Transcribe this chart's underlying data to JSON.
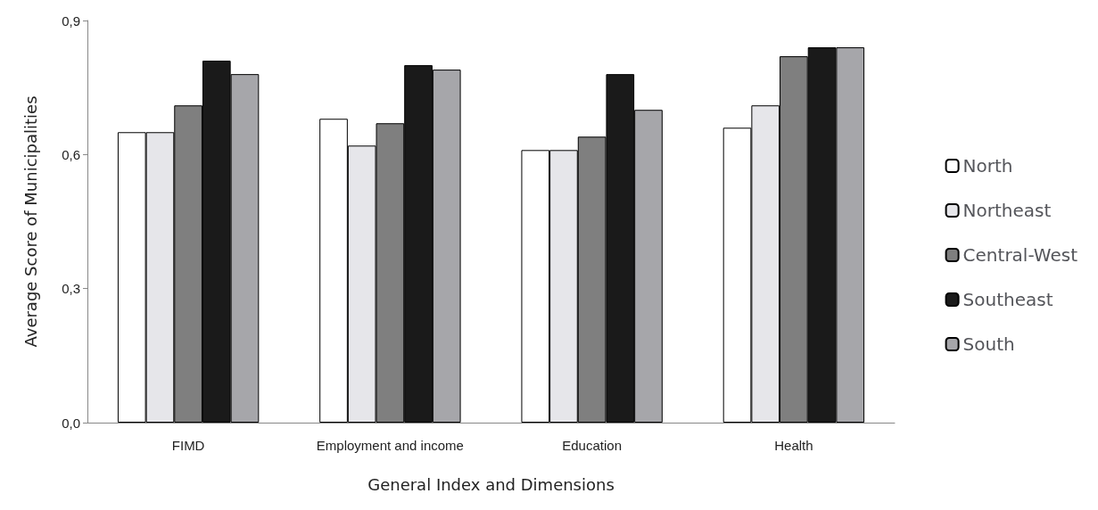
{
  "chart_data": {
    "type": "bar",
    "xlabel": "General Index and Dimensions",
    "ylabel": "Average Score of Municipalities",
    "categories": [
      "FIMD",
      "Employment and income",
      "Education",
      "Health"
    ],
    "series": [
      {
        "name": "North",
        "color": "#ffffff",
        "values": [
          0.65,
          0.68,
          0.61,
          0.66
        ]
      },
      {
        "name": "Northeast",
        "color": "#e6e6ea",
        "values": [
          0.65,
          0.62,
          0.61,
          0.71
        ]
      },
      {
        "name": "Central-West",
        "color": "#7f7f7f",
        "values": [
          0.71,
          0.67,
          0.64,
          0.82
        ]
      },
      {
        "name": "Southeast",
        "color": "#1a1a1a",
        "values": [
          0.81,
          0.8,
          0.78,
          0.84
        ]
      },
      {
        "name": "South",
        "color": "#a6a6aa",
        "values": [
          0.78,
          0.79,
          0.7,
          0.84
        ]
      }
    ],
    "ylim": [
      0,
      0.9
    ],
    "yticks": [
      {
        "value": 0,
        "label": "0,0"
      },
      {
        "value": 0.3,
        "label": "0,3"
      },
      {
        "value": 0.6,
        "label": "0,6"
      },
      {
        "value": 0.9,
        "label": "0,9"
      }
    ],
    "grid": false,
    "legend": "right"
  }
}
